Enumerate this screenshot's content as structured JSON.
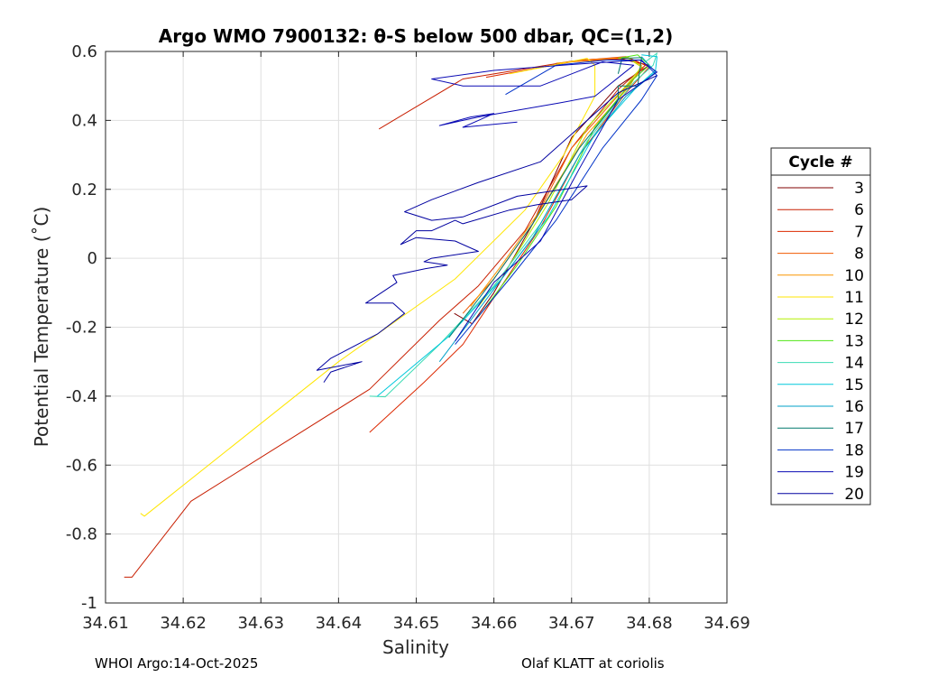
{
  "chart_data": {
    "type": "line",
    "title": "Argo WMO 7900132: θ-S below 500 dbar,  QC=(1,2)",
    "xlabel": "Salinity",
    "ylabel": "Potential Temperature (˚C)",
    "xlim": [
      34.61,
      34.69
    ],
    "ylim": [
      -1,
      0.6
    ],
    "xticks": [
      34.61,
      34.62,
      34.63,
      34.64,
      34.65,
      34.66,
      34.67,
      34.68,
      34.69
    ],
    "xtick_labels": [
      "34.61",
      "34.62",
      "34.63",
      "34.64",
      "34.65",
      "34.66",
      "34.67",
      "34.68",
      "34.69"
    ],
    "yticks": [
      0.6,
      0.4,
      0.2,
      0,
      -0.2,
      -0.4,
      -0.6,
      -0.8,
      -1
    ],
    "ytick_labels": [
      "0.6",
      "0.4",
      "0.2",
      "0",
      "-0.2",
      "-0.4",
      "-0.6",
      "-0.8",
      "-1"
    ],
    "grid": true,
    "legend": {
      "title": "Cycle #",
      "placement": "outside-right"
    },
    "series": [
      {
        "name": "3",
        "color": "#800000",
        "points": [
          [
            34.6549,
            -0.16
          ],
          [
            34.6572,
            -0.19
          ],
          [
            34.66,
            -0.1
          ],
          [
            34.665,
            0.1
          ],
          [
            34.67,
            0.35
          ],
          [
            34.676,
            0.5
          ],
          [
            34.68,
            0.56
          ],
          [
            34.676,
            0.58
          ],
          [
            34.671,
            0.575
          ]
        ]
      },
      {
        "name": "6",
        "color": "#c81e00",
        "points": [
          [
            34.6124,
            -0.925
          ],
          [
            34.6134,
            -0.925
          ],
          [
            34.621,
            -0.705
          ],
          [
            34.644,
            -0.38
          ],
          [
            34.653,
            -0.18
          ],
          [
            34.658,
            -0.08
          ],
          [
            34.664,
            0.08
          ],
          [
            34.67,
            0.32
          ],
          [
            34.676,
            0.49
          ],
          [
            34.6795,
            0.56
          ],
          [
            34.677,
            0.585
          ],
          [
            34.67,
            0.572
          ],
          [
            34.656,
            0.52
          ],
          [
            34.6452,
            0.375
          ]
        ]
      },
      {
        "name": "7",
        "color": "#dc2800",
        "points": [
          [
            34.644,
            -0.505
          ],
          [
            34.651,
            -0.36
          ],
          [
            34.656,
            -0.25
          ],
          [
            34.661,
            -0.08
          ],
          [
            34.666,
            0.09
          ],
          [
            34.671,
            0.3
          ],
          [
            34.677,
            0.48
          ],
          [
            34.68,
            0.555
          ],
          [
            34.6775,
            0.58
          ],
          [
            34.67,
            0.57
          ],
          [
            34.659,
            0.525
          ]
        ]
      },
      {
        "name": "8",
        "color": "#f05a00",
        "points": [
          [
            34.656,
            -0.16
          ],
          [
            34.66,
            -0.06
          ],
          [
            34.665,
            0.1
          ],
          [
            34.67,
            0.32
          ],
          [
            34.6765,
            0.485
          ],
          [
            34.6792,
            0.552
          ],
          [
            34.6772,
            0.582
          ],
          [
            34.671,
            0.575
          ]
        ]
      },
      {
        "name": "10",
        "color": "#fa9600",
        "points": [
          [
            34.657,
            -0.14
          ],
          [
            34.661,
            -0.02
          ],
          [
            34.666,
            0.14
          ],
          [
            34.672,
            0.36
          ],
          [
            34.6775,
            0.5
          ],
          [
            34.679,
            0.56
          ],
          [
            34.677,
            0.584
          ],
          [
            34.668,
            0.566
          ]
        ]
      },
      {
        "name": "11",
        "color": "#ffe600",
        "points": [
          [
            34.6145,
            -0.74
          ],
          [
            34.615,
            -0.748
          ],
          [
            34.64,
            -0.3
          ],
          [
            34.655,
            -0.06
          ],
          [
            34.664,
            0.14
          ],
          [
            34.669,
            0.3
          ],
          [
            34.673,
            0.47
          ],
          [
            34.673,
            0.56
          ],
          [
            34.672,
            0.58
          ],
          [
            34.662,
            0.535
          ]
        ]
      },
      {
        "name": "12",
        "color": "#b4f000",
        "points": [
          [
            34.658,
            -0.14
          ],
          [
            34.662,
            -0.02
          ],
          [
            34.667,
            0.16
          ],
          [
            34.672,
            0.38
          ],
          [
            34.677,
            0.5
          ],
          [
            34.679,
            0.555
          ],
          [
            34.677,
            0.585
          ]
        ]
      },
      {
        "name": "13",
        "color": "#50e614",
        "points": [
          [
            34.658,
            -0.17
          ],
          [
            34.663,
            -0.02
          ],
          [
            34.668,
            0.15
          ],
          [
            34.673,
            0.38
          ],
          [
            34.678,
            0.52
          ],
          [
            34.68,
            0.56
          ],
          [
            34.6785,
            0.59
          ],
          [
            34.676,
            0.58
          ]
        ]
      },
      {
        "name": "14",
        "color": "#3cdcb4",
        "points": [
          [
            34.644,
            -0.4
          ],
          [
            34.646,
            -0.402
          ],
          [
            34.653,
            -0.25
          ],
          [
            34.66,
            -0.08
          ],
          [
            34.666,
            0.1
          ],
          [
            34.672,
            0.34
          ],
          [
            34.678,
            0.51
          ],
          [
            34.6805,
            0.56
          ],
          [
            34.681,
            0.595
          ],
          [
            34.6795,
            0.57
          ]
        ]
      },
      {
        "name": "15",
        "color": "#00c8dc",
        "points": [
          [
            34.645,
            -0.4
          ],
          [
            34.654,
            -0.23
          ],
          [
            34.661,
            -0.06
          ],
          [
            34.667,
            0.12
          ],
          [
            34.673,
            0.36
          ],
          [
            34.6785,
            0.5
          ],
          [
            34.6808,
            0.545
          ],
          [
            34.681,
            0.585
          ],
          [
            34.679,
            0.59
          ]
        ]
      },
      {
        "name": "16",
        "color": "#00a0c8",
        "points": [
          [
            34.653,
            -0.3
          ],
          [
            34.659,
            -0.12
          ],
          [
            34.665,
            0.06
          ],
          [
            34.671,
            0.3
          ],
          [
            34.677,
            0.47
          ],
          [
            34.6808,
            0.54
          ],
          [
            34.679,
            0.585
          ]
        ]
      },
      {
        "name": "17",
        "color": "#00786e",
        "points": [
          [
            34.6542,
            -0.23
          ],
          [
            34.66,
            -0.06
          ],
          [
            34.665,
            0.1
          ],
          [
            34.671,
            0.32
          ],
          [
            34.676,
            0.46
          ],
          [
            34.676,
            0.5
          ],
          [
            34.6785,
            0.5
          ],
          [
            34.679,
            0.582
          ],
          [
            34.6765,
            0.58
          ],
          [
            34.676,
            0.535
          ]
        ]
      },
      {
        "name": "18",
        "color": "#0032c8",
        "points": [
          [
            34.655,
            -0.25
          ],
          [
            34.662,
            -0.06
          ],
          [
            34.668,
            0.11
          ],
          [
            34.674,
            0.32
          ],
          [
            34.679,
            0.46
          ],
          [
            34.681,
            0.53
          ],
          [
            34.679,
            0.575
          ],
          [
            34.6745,
            0.575
          ],
          [
            34.668,
            0.56
          ],
          [
            34.6615,
            0.475
          ]
        ]
      },
      {
        "name": "19",
        "color": "#0a0ab4",
        "points": [
          [
            34.655,
            -0.24
          ],
          [
            34.66,
            -0.07
          ],
          [
            34.666,
            0.05
          ],
          [
            34.671,
            0.26
          ],
          [
            34.676,
            0.46
          ],
          [
            34.681,
            0.54
          ],
          [
            34.6788,
            0.575
          ],
          [
            34.67,
            0.562
          ],
          [
            34.66,
            0.545
          ],
          [
            34.652,
            0.52
          ],
          [
            34.656,
            0.5
          ],
          [
            34.66,
            0.5
          ],
          [
            34.666,
            0.5
          ],
          [
            34.674,
            0.57
          ],
          [
            34.678,
            0.56
          ],
          [
            34.673,
            0.47
          ],
          [
            34.6683,
            0.45
          ],
          [
            34.658,
            0.41
          ],
          [
            34.656,
            0.4
          ],
          [
            34.653,
            0.385
          ],
          [
            34.657,
            0.41
          ],
          [
            34.66,
            0.42
          ],
          [
            34.658,
            0.4
          ],
          [
            34.656,
            0.38
          ],
          [
            34.663,
            0.395
          ]
        ]
      },
      {
        "name": "20",
        "color": "#0000a0",
        "points": [
          [
            34.6381,
            -0.36
          ],
          [
            34.639,
            -0.33
          ],
          [
            34.643,
            -0.3
          ],
          [
            34.6372,
            -0.325
          ],
          [
            34.639,
            -0.29
          ],
          [
            34.645,
            -0.22
          ],
          [
            34.6485,
            -0.16
          ],
          [
            34.647,
            -0.13
          ],
          [
            34.6435,
            -0.13
          ],
          [
            34.6475,
            -0.07
          ],
          [
            34.647,
            -0.05
          ],
          [
            34.6512,
            -0.03
          ],
          [
            34.654,
            -0.02
          ],
          [
            34.651,
            -0.01
          ],
          [
            34.652,
            0.0
          ],
          [
            34.658,
            0.02
          ],
          [
            34.655,
            0.05
          ],
          [
            34.65,
            0.06
          ],
          [
            34.648,
            0.04
          ],
          [
            34.65,
            0.08
          ],
          [
            34.652,
            0.08
          ],
          [
            34.655,
            0.11
          ],
          [
            34.656,
            0.1
          ],
          [
            34.662,
            0.14
          ],
          [
            34.6655,
            0.155
          ],
          [
            34.67,
            0.17
          ],
          [
            34.672,
            0.21
          ],
          [
            34.663,
            0.18
          ],
          [
            34.656,
            0.12
          ],
          [
            34.652,
            0.11
          ],
          [
            34.6485,
            0.135
          ],
          [
            34.652,
            0.17
          ],
          [
            34.658,
            0.22
          ],
          [
            34.666,
            0.28
          ],
          [
            34.676,
            0.48
          ],
          [
            34.681,
            0.53
          ]
        ]
      }
    ]
  },
  "footer": {
    "left": "WHOI Argo:14-Oct-2025",
    "right": "Olaf KLATT at coriolis"
  }
}
